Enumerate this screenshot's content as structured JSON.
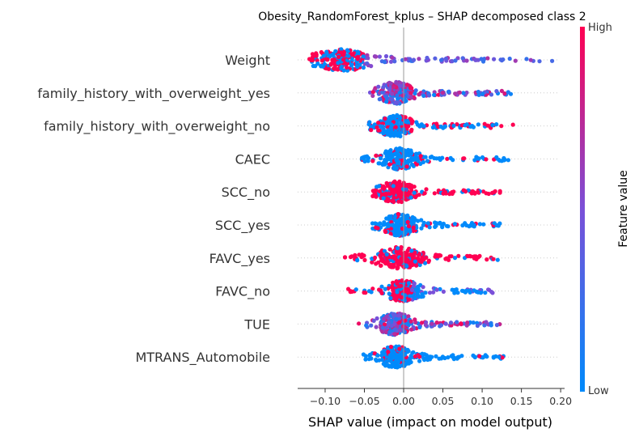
{
  "chart_data": {
    "type": "scatter",
    "subtype": "shap-beeswarm",
    "title": "Obesity_RandomForest_kplus – SHAP decomposed class 2",
    "xlabel": "SHAP value (impact on model output)",
    "ylabel": "",
    "xlim": [
      -0.135,
      0.205
    ],
    "x_ticks": [
      -0.1,
      -0.05,
      0.0,
      0.05,
      0.1,
      0.15,
      0.2
    ],
    "x_tick_labels": [
      "−0.10",
      "−0.05",
      "0.00",
      "0.05",
      "0.10",
      "0.15",
      "0.20"
    ],
    "grid": false,
    "features": [
      {
        "name": "Weight",
        "min": -0.12,
        "max": 0.19,
        "core": [
          -0.095,
          -0.06
        ],
        "high_color_side": "negative"
      },
      {
        "name": "family_history_with_overweight_yes",
        "min": -0.045,
        "max": 0.14,
        "core": [
          -0.02,
          0.0
        ],
        "high_color_side": "mixed"
      },
      {
        "name": "family_history_with_overweight_no",
        "min": -0.045,
        "max": 0.14,
        "core": [
          -0.02,
          0.0
        ],
        "high_color_side": "positive"
      },
      {
        "name": "CAEC",
        "min": -0.055,
        "max": 0.135,
        "core": [
          -0.015,
          0.005
        ],
        "high_color_side": "low"
      },
      {
        "name": "SCC_no",
        "min": -0.04,
        "max": 0.125,
        "core": [
          -0.02,
          0.0
        ],
        "high_color_side": "high"
      },
      {
        "name": "SCC_yes",
        "min": -0.04,
        "max": 0.125,
        "core": [
          -0.015,
          0.005
        ],
        "high_color_side": "low"
      },
      {
        "name": "FAVC_yes",
        "min": -0.075,
        "max": 0.12,
        "core": [
          -0.02,
          0.01
        ],
        "high_color_side": "high"
      },
      {
        "name": "FAVC_no",
        "min": -0.075,
        "max": 0.12,
        "core": [
          -0.01,
          0.01
        ],
        "high_color_side": "negative"
      },
      {
        "name": "TUE",
        "min": -0.058,
        "max": 0.125,
        "core": [
          -0.02,
          0.0
        ],
        "high_color_side": "mixed"
      },
      {
        "name": "MTRANS_Automobile",
        "min": -0.055,
        "max": 0.13,
        "core": [
          -0.02,
          0.0
        ],
        "high_color_side": "low"
      }
    ],
    "colorbar": {
      "label": "Feature value",
      "high_label": "High",
      "low_label": "Low",
      "colors": [
        "#008afb",
        "#7a50d8",
        "#ff0052"
      ]
    }
  }
}
